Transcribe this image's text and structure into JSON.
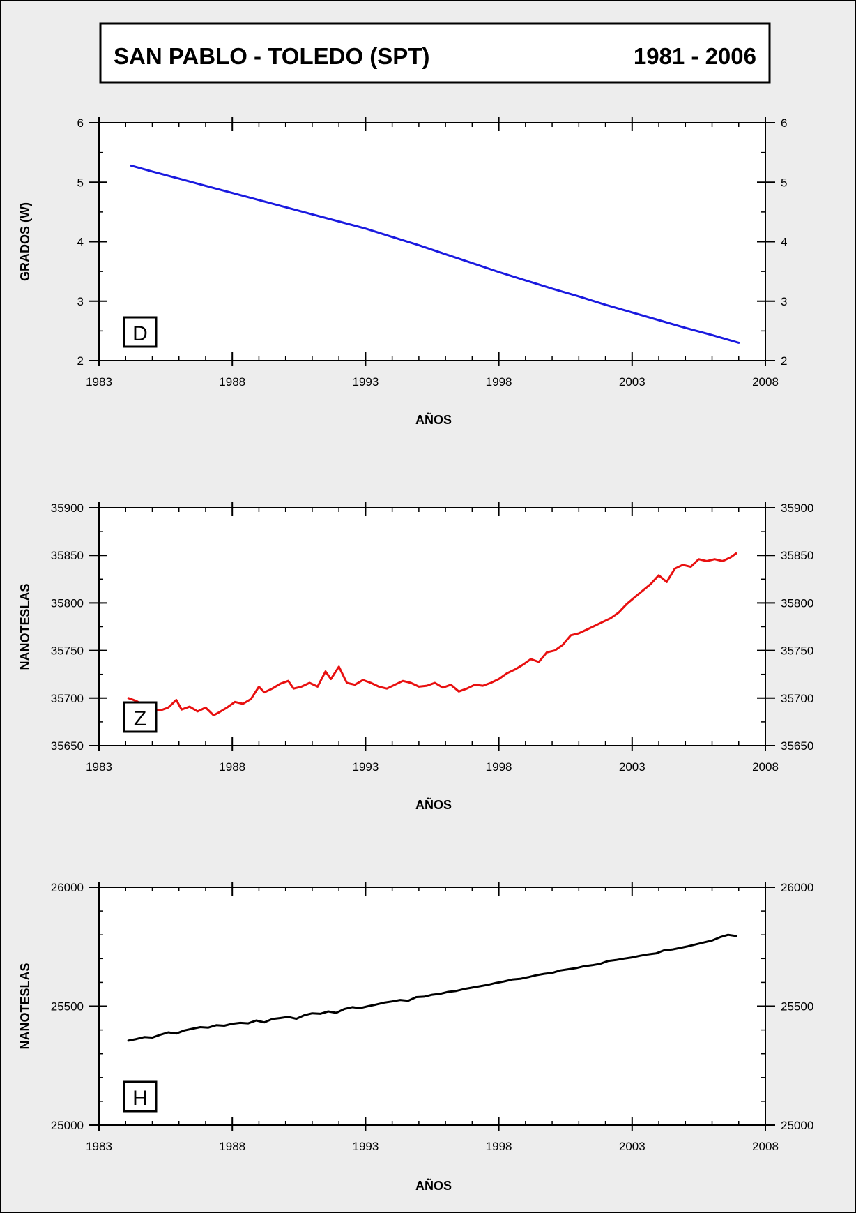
{
  "header": {
    "title": "SAN PABLO - TOLEDO  (SPT)",
    "period": "1981 - 2006"
  },
  "chart_data": [
    {
      "type": "line",
      "id": "D",
      "panel_label": "D",
      "xlabel": "AÑOS",
      "ylabel": "GRADOS (W)",
      "xlim": [
        1983,
        2008
      ],
      "ylim": [
        2,
        6
      ],
      "xticks": [
        1983,
        1988,
        1993,
        1998,
        2003,
        2008
      ],
      "yticks": [
        2,
        3,
        4,
        5,
        6
      ],
      "tick_labels_x": [
        "1983",
        "1988",
        "1993",
        "1998",
        "2003",
        "2008"
      ],
      "tick_labels_y": [
        "2",
        "3",
        "4",
        "5",
        "6"
      ],
      "minor_x": 1,
      "minor_y": 0.5,
      "color": "#1a1adf",
      "series": [
        {
          "x": [
            1984.2,
            1985,
            1986,
            1987,
            1988,
            1989,
            1990,
            1991,
            1992,
            1993,
            1994,
            1995,
            1996,
            1997,
            1998,
            1999,
            2000,
            2001,
            2002,
            2003,
            2004,
            2005,
            2006,
            2007
          ],
          "y": [
            5.28,
            5.18,
            5.06,
            4.94,
            4.82,
            4.7,
            4.58,
            4.46,
            4.34,
            4.22,
            4.08,
            3.94,
            3.79,
            3.64,
            3.49,
            3.35,
            3.21,
            3.08,
            2.94,
            2.81,
            2.68,
            2.55,
            2.43,
            2.3
          ]
        }
      ]
    },
    {
      "type": "line",
      "id": "Z",
      "panel_label": "Z",
      "xlabel": "AÑOS",
      "ylabel": "NANOTESLAS",
      "xlim": [
        1983,
        2008
      ],
      "ylim": [
        35650,
        35900
      ],
      "xticks": [
        1983,
        1988,
        1993,
        1998,
        2003,
        2008
      ],
      "yticks": [
        35650,
        35700,
        35750,
        35800,
        35850,
        35900
      ],
      "tick_labels_x": [
        "1983",
        "1988",
        "1993",
        "1998",
        "2003",
        "2008"
      ],
      "tick_labels_y": [
        "35650",
        "35700",
        "35750",
        "35800",
        "35850",
        "35900"
      ],
      "minor_x": 1,
      "minor_y": 25,
      "color": "#e81010",
      "series": [
        {
          "x": [
            1984.1,
            1984.4,
            1984.7,
            1985.0,
            1985.3,
            1985.6,
            1985.9,
            1986.1,
            1986.4,
            1986.7,
            1987.0,
            1987.3,
            1987.5,
            1987.8,
            1988.1,
            1988.4,
            1988.7,
            1989.0,
            1989.2,
            1989.5,
            1989.8,
            1990.1,
            1990.3,
            1990.6,
            1990.9,
            1991.2,
            1991.5,
            1991.7,
            1992.0,
            1992.3,
            1992.6,
            1992.9,
            1993.2,
            1993.5,
            1993.8,
            1994.1,
            1994.4,
            1994.7,
            1995.0,
            1995.3,
            1995.6,
            1995.9,
            1996.2,
            1996.5,
            1996.8,
            1997.1,
            1997.4,
            1997.7,
            1998.0,
            1998.3,
            1998.6,
            1998.9,
            1999.2,
            1999.5,
            1999.8,
            2000.1,
            2000.4,
            2000.7,
            2001.0,
            2001.3,
            2001.6,
            2001.9,
            2002.2,
            2002.5,
            2002.8,
            2003.1,
            2003.4,
            2003.7,
            2004.0,
            2004.3,
            2004.6,
            2004.9,
            2005.2,
            2005.5,
            2005.8,
            2006.1,
            2006.4,
            2006.7,
            2006.9
          ],
          "y": [
            35700,
            35697,
            35692,
            35689,
            35687,
            35690,
            35698,
            35688,
            35691,
            35686,
            35690,
            35682,
            35685,
            35690,
            35696,
            35694,
            35699,
            35712,
            35706,
            35710,
            35715,
            35718,
            35710,
            35712,
            35716,
            35712,
            35728,
            35720,
            35733,
            35716,
            35714,
            35719,
            35716,
            35712,
            35710,
            35714,
            35718,
            35716,
            35712,
            35713,
            35716,
            35711,
            35714,
            35707,
            35710,
            35714,
            35713,
            35716,
            35720,
            35726,
            35730,
            35735,
            35741,
            35738,
            35748,
            35750,
            35756,
            35766,
            35768,
            35772,
            35776,
            35780,
            35784,
            35790,
            35799,
            35806,
            35813,
            35820,
            35829,
            35822,
            35836,
            35840,
            35838,
            35846,
            35844,
            35846,
            35844,
            35848,
            35852
          ]
        }
      ]
    },
    {
      "type": "line",
      "id": "H",
      "panel_label": "H",
      "xlabel": "AÑOS",
      "ylabel": "NANOTESLAS",
      "xlim": [
        1983,
        2008
      ],
      "ylim": [
        25000,
        26000
      ],
      "xticks": [
        1983,
        1988,
        1993,
        1998,
        2003,
        2008
      ],
      "yticks": [
        25000,
        25500,
        26000
      ],
      "tick_labels_x": [
        "1983",
        "1988",
        "1993",
        "1998",
        "2003",
        "2008"
      ],
      "tick_labels_y": [
        "25000",
        "25500",
        "26000"
      ],
      "minor_x": 1,
      "minor_y": 100,
      "color": "#000000",
      "series": [
        {
          "x": [
            1984.1,
            1984.4,
            1984.7,
            1985.0,
            1985.3,
            1985.6,
            1985.9,
            1986.2,
            1986.5,
            1986.8,
            1987.1,
            1987.4,
            1987.7,
            1988.0,
            1988.3,
            1988.6,
            1988.9,
            1989.2,
            1989.5,
            1989.8,
            1990.1,
            1990.4,
            1990.7,
            1991.0,
            1991.3,
            1991.6,
            1991.9,
            1992.2,
            1992.5,
            1992.8,
            1993.1,
            1993.4,
            1993.7,
            1994.0,
            1994.3,
            1994.6,
            1994.9,
            1995.2,
            1995.5,
            1995.8,
            1996.1,
            1996.4,
            1996.7,
            1997.0,
            1997.3,
            1997.6,
            1997.9,
            1998.2,
            1998.5,
            1998.8,
            1999.1,
            1999.4,
            1999.7,
            2000.0,
            2000.3,
            2000.6,
            2000.9,
            2001.2,
            2001.5,
            2001.8,
            2002.1,
            2002.4,
            2002.7,
            2003.0,
            2003.3,
            2003.6,
            2003.9,
            2004.2,
            2004.5,
            2004.8,
            2005.1,
            2005.4,
            2005.7,
            2006.0,
            2006.3,
            2006.6,
            2006.9
          ],
          "y": [
            25355,
            25362,
            25370,
            25368,
            25380,
            25390,
            25385,
            25398,
            25405,
            25412,
            25410,
            25420,
            25418,
            25426,
            25430,
            25428,
            25440,
            25432,
            25446,
            25450,
            25455,
            25447,
            25462,
            25470,
            25468,
            25478,
            25472,
            25488,
            25496,
            25492,
            25500,
            25507,
            25515,
            25520,
            25526,
            25523,
            25538,
            25540,
            25548,
            25552,
            25560,
            25564,
            25572,
            25578,
            25584,
            25590,
            25598,
            25604,
            25612,
            25615,
            25622,
            25630,
            25636,
            25640,
            25650,
            25655,
            25660,
            25668,
            25672,
            25678,
            25690,
            25694,
            25700,
            25705,
            25712,
            25718,
            25722,
            25735,
            25738,
            25745,
            25752,
            25760,
            25768,
            25776,
            25790,
            25800,
            25795
          ]
        }
      ]
    }
  ]
}
